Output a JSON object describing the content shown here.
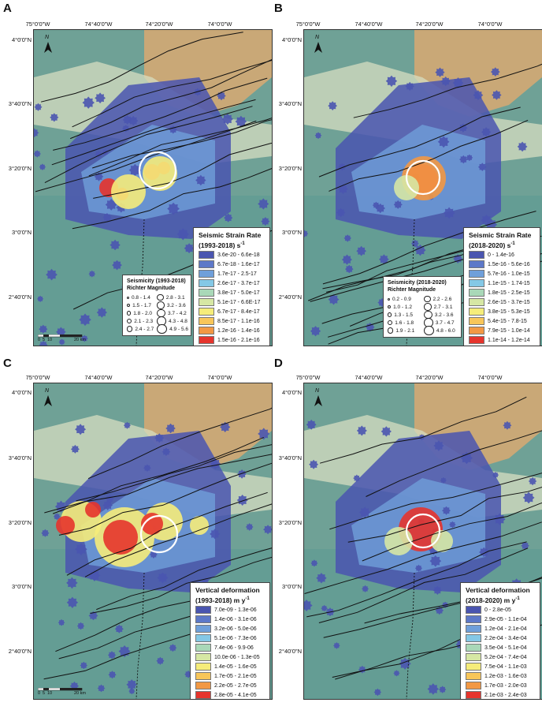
{
  "panels": [
    {
      "letter": "A",
      "legend": {
        "title": "Seismic Strain Rate",
        "subtitle": "(1993-2018) s",
        "unit_sup": "-1",
        "classes": [
          {
            "label": "3.6e-20 - 6.6e-18",
            "color": "#4a55b0"
          },
          {
            "label": "6.7e-18 - 1.6e-17",
            "color": "#5d78c8"
          },
          {
            "label": "1.7e-17 - 2.5-17",
            "color": "#6f9fda"
          },
          {
            "label": "2.6e-17 - 3.7e-17",
            "color": "#84c8e6"
          },
          {
            "label": "3.8e-17 - 5.0e-17",
            "color": "#a9d8b8"
          },
          {
            "label": "5.1e-17 - 6.6E-17",
            "color": "#d6e7a4"
          },
          {
            "label": "6.7e-17 - 8.4e-17",
            "color": "#f5ec7a"
          },
          {
            "label": "8.5e-17 - 1.1e-16",
            "color": "#f8c65a"
          },
          {
            "label": "1.2e-16 - 1.4e-16",
            "color": "#f29844"
          },
          {
            "label": "1.5e-16 - 2.1e-16",
            "color": "#e6342c"
          }
        ]
      },
      "seismicity": {
        "title": "Seismicity (1993-2018)",
        "subtitle": "Richter Magnitude",
        "items": [
          "0.8 - 1.4",
          "2.8 - 3.1",
          "1.5 - 1.7",
          "3.2 - 3.6",
          "1.8 - 2.0",
          "3.7 - 4.2",
          "2.1 - 2.3",
          "4.3 - 4.8",
          "2.4 - 2.7",
          "4.9 - 5.6"
        ]
      }
    },
    {
      "letter": "B",
      "legend": {
        "title": "Seismic Strain Rate",
        "subtitle": "(2018-2020) s",
        "unit_sup": "-1",
        "classes": [
          {
            "label": "0 - 1.4e-16",
            "color": "#4a55b0"
          },
          {
            "label": "1.5e-16 - 5.6e-16",
            "color": "#5d78c8"
          },
          {
            "label": "5.7e-16 - 1.0e-15",
            "color": "#6f9fda"
          },
          {
            "label": "1.1e-15 - 1.74-15",
            "color": "#84c8e6"
          },
          {
            "label": "1.8e-15 - 2.5e-15",
            "color": "#a9d8b8"
          },
          {
            "label": "2.6e-15 - 3.7e-15",
            "color": "#d6e7a4"
          },
          {
            "label": "3.8e-15 - 5.3e-15",
            "color": "#f5ec7a"
          },
          {
            "label": "5.4e-15 - 7.8-15",
            "color": "#f8c65a"
          },
          {
            "label": "7.9e-15 - 1.0e-14",
            "color": "#f29844"
          },
          {
            "label": "1.1e-14 - 1.2e-14",
            "color": "#e6342c"
          }
        ]
      },
      "seismicity": {
        "title": "Seismicity (2018-2020)",
        "subtitle": "Richter Magnitude",
        "items": [
          "0.2 - 0.9",
          "2.2 - 2.6",
          "1.0 - 1.2",
          "2.7 - 3.1",
          "1.3 - 1.5",
          "3.2 - 3.6",
          "1.6 - 1.8",
          "3.7 - 4.7",
          "1.9 - 2.1",
          "4.8 - 6.0"
        ]
      }
    },
    {
      "letter": "C",
      "legend": {
        "title": "Vertical deformation",
        "subtitle": "(1993-2018) m y",
        "unit_sup": "-1",
        "classes": [
          {
            "label": "7.0e-09 - 1.3e-06",
            "color": "#4a55b0"
          },
          {
            "label": "1.4e-06 - 3.1e-06",
            "color": "#5d78c8"
          },
          {
            "label": "3.2e-06 - 5.0e-06",
            "color": "#6f9fda"
          },
          {
            "label": "5.1e-06 - 7.3e-06",
            "color": "#84c8e6"
          },
          {
            "label": "7.4e-06 - 9.9-06",
            "color": "#a9d8b8"
          },
          {
            "label": "10.0e-06 - 1.3e-05",
            "color": "#d6e7a4"
          },
          {
            "label": "1.4e-05 - 1.6e-05",
            "color": "#f5ec7a"
          },
          {
            "label": "1.7e-05 - 2.1e-05",
            "color": "#f8c65a"
          },
          {
            "label": "2.2e-05 - 2.7e-05",
            "color": "#f29844"
          },
          {
            "label": "2.8e-05 - 4.1e-05",
            "color": "#e6342c"
          }
        ]
      }
    },
    {
      "letter": "D",
      "legend": {
        "title": "Vertical deformation",
        "subtitle": "(2018-2020) m y",
        "unit_sup": "-1",
        "classes": [
          {
            "label": "0 - 2.8e-05",
            "color": "#4a55b0"
          },
          {
            "label": "2.9e-05 - 1.1e-04",
            "color": "#5d78c8"
          },
          {
            "label": "1.2e-04 - 2.1e-04",
            "color": "#6f9fda"
          },
          {
            "label": "2.2e-04 - 3.4e-04",
            "color": "#84c8e6"
          },
          {
            "label": "3.5e-04 - 5.1e-04",
            "color": "#a9d8b8"
          },
          {
            "label": "5.2e-04 - 7.4e-04",
            "color": "#d6e7a4"
          },
          {
            "label": "7.5e-04 - 1.1e-03",
            "color": "#f5ec7a"
          },
          {
            "label": "1.2e-03 - 1.6e-03",
            "color": "#f8c65a"
          },
          {
            "label": "1.7e-03 - 2.0e-03",
            "color": "#f29844"
          },
          {
            "label": "2.1e-03 - 2.4e-03",
            "color": "#e6342c"
          }
        ]
      }
    }
  ],
  "longitude_labels": [
    "75°0'0\"W",
    "74°40'0\"W",
    "74°20'0\"W",
    "74°0'0\"W"
  ],
  "latitude_labels": [
    "4°0'0\"N",
    "3°40'0\"N",
    "3°20'0\"N",
    "3°0'0\"N",
    "2°40'0\"N"
  ],
  "scalebar": {
    "labels": [
      "0",
      "5",
      "10",
      "20 km"
    ]
  },
  "north_label": "N"
}
